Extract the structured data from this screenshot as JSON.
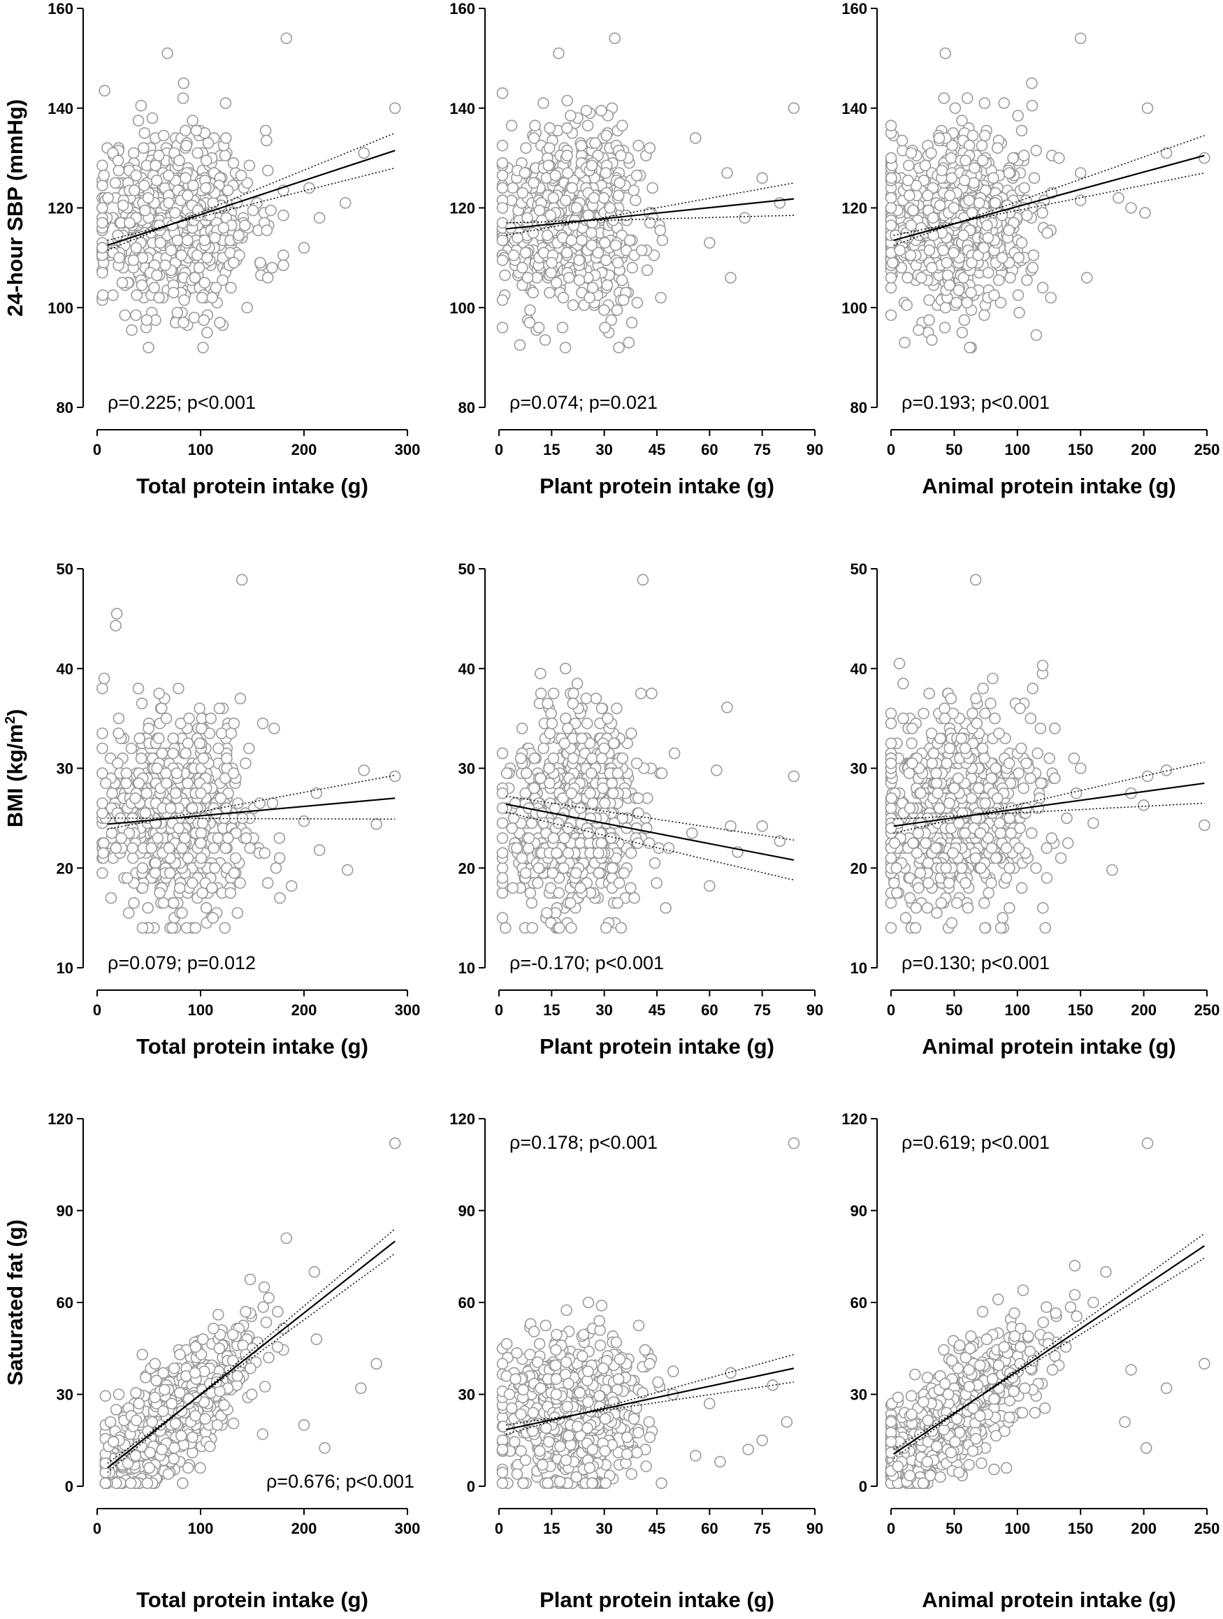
{
  "chart_data": [
    {
      "id": "sbp-total",
      "type": "scatter",
      "ylabel": "24-hour SBP (mmHg)",
      "xlabel": "Total protein intake (g)",
      "xlim": [
        0,
        300
      ],
      "ylim": [
        80,
        160
      ],
      "xticks": [
        0,
        100,
        200,
        300
      ],
      "yticks": [
        80,
        100,
        120,
        140,
        160
      ],
      "annotation": "ρ=0.225; p<0.001",
      "annotation_position": "bottom-left",
      "fit": {
        "x": [
          10,
          288
        ],
        "y": [
          112.5,
          131.5
        ]
      },
      "ci_lower": {
        "x": [
          10,
          288
        ],
        "y": [
          113.5,
          128
        ]
      },
      "ci_upper": {
        "x": [
          10,
          288
        ],
        "y": [
          111.5,
          135
        ]
      },
      "points": {
        "n": 650,
        "x_mean": 75,
        "x_sd": 38,
        "x_min": 5,
        "x_max": 180,
        "y_mean": 117.5,
        "y_sd": 9,
        "y_min": 92,
        "y_max": 145,
        "seed": 11
      },
      "outliers": [
        [
          288,
          140
        ],
        [
          183,
          154
        ],
        [
          68,
          151
        ],
        [
          258,
          131
        ],
        [
          200,
          112
        ],
        [
          165,
          106
        ],
        [
          145,
          100
        ],
        [
          240,
          121
        ],
        [
          205,
          124
        ],
        [
          215,
          118
        ]
      ]
    },
    {
      "id": "sbp-plant",
      "type": "scatter",
      "ylabel": "",
      "xlabel": "Plant protein intake (g)",
      "xlim": [
        0,
        90
      ],
      "ylim": [
        80,
        160
      ],
      "xticks": [
        0,
        15,
        30,
        45,
        60,
        75,
        90
      ],
      "yticks": [
        80,
        100,
        120,
        140,
        160
      ],
      "annotation": "ρ=0.074; p=0.021",
      "annotation_position": "bottom-left",
      "fit": {
        "x": [
          2,
          84
        ],
        "y": [
          115.8,
          121.8
        ]
      },
      "ci_lower": {
        "x": [
          2,
          84
        ],
        "y": [
          117,
          118.5
        ]
      },
      "ci_upper": {
        "x": [
          2,
          84
        ],
        "y": [
          114.5,
          125
        ]
      },
      "points": {
        "n": 650,
        "x_mean": 21,
        "x_sd": 10,
        "x_min": 1,
        "x_max": 50,
        "y_mean": 117.5,
        "y_sd": 9,
        "y_min": 92,
        "y_max": 145,
        "seed": 22
      },
      "outliers": [
        [
          84,
          140
        ],
        [
          33,
          154
        ],
        [
          17,
          151
        ],
        [
          66,
          106
        ],
        [
          75,
          126
        ],
        [
          80,
          121
        ],
        [
          56,
          134
        ],
        [
          65,
          127
        ],
        [
          70,
          118
        ],
        [
          60,
          113
        ]
      ]
    },
    {
      "id": "sbp-animal",
      "type": "scatter",
      "ylabel": "",
      "xlabel": "Animal protein intake (g)",
      "xlim": [
        0,
        250
      ],
      "ylim": [
        80,
        160
      ],
      "xticks": [
        0,
        50,
        100,
        150,
        200,
        250
      ],
      "yticks": [
        80,
        100,
        120,
        140,
        160
      ],
      "annotation": "ρ=0.193; p<0.001",
      "annotation_position": "bottom-left",
      "fit": {
        "x": [
          2,
          248
        ],
        "y": [
          113.5,
          130.5
        ]
      },
      "ci_lower": {
        "x": [
          2,
          248
        ],
        "y": [
          114.5,
          127
        ]
      },
      "ci_upper": {
        "x": [
          2,
          248
        ],
        "y": [
          112.5,
          134.5
        ]
      },
      "points": {
        "n": 650,
        "x_mean": 50,
        "x_sd": 33,
        "x_min": 0,
        "x_max": 150,
        "y_mean": 117.5,
        "y_sd": 9,
        "y_min": 92,
        "y_max": 145,
        "seed": 33
      },
      "outliers": [
        [
          248,
          130
        ],
        [
          150,
          154
        ],
        [
          43,
          151
        ],
        [
          203,
          140
        ],
        [
          155,
          106
        ],
        [
          201,
          119
        ],
        [
          180,
          122
        ],
        [
          120,
          104
        ],
        [
          218,
          131
        ],
        [
          190,
          120
        ]
      ]
    },
    {
      "id": "bmi-total",
      "type": "scatter",
      "ylabel": "BMI (kg/m²)",
      "ylabel_base": "BMI (kg/m",
      "ylabel_sup": "2",
      "ylabel_end": ")",
      "xlabel": "Total protein intake (g)",
      "xlim": [
        0,
        300
      ],
      "ylim": [
        10,
        50
      ],
      "xticks": [
        0,
        100,
        200,
        300
      ],
      "yticks": [
        10,
        20,
        30,
        40,
        50
      ],
      "annotation": "ρ=0.079; p=0.012",
      "annotation_position": "bottom-left",
      "fit": {
        "x": [
          10,
          288
        ],
        "y": [
          24.4,
          27
        ]
      },
      "ci_lower": {
        "x": [
          10,
          288
        ],
        "y": [
          25,
          24.9
        ]
      },
      "ci_upper": {
        "x": [
          10,
          288
        ],
        "y": [
          23.9,
          29.3
        ]
      },
      "points": {
        "n": 650,
        "x_mean": 75,
        "x_sd": 38,
        "x_min": 5,
        "x_max": 180,
        "y_mean": 25.5,
        "y_sd": 5.2,
        "y_min": 14,
        "y_max": 48,
        "seed": 44
      },
      "outliers": [
        [
          288,
          29.2
        ],
        [
          140,
          48.9
        ],
        [
          258,
          29.8
        ],
        [
          242,
          19.8
        ],
        [
          212,
          27.5
        ],
        [
          188,
          18.2
        ],
        [
          270,
          24.4
        ],
        [
          215,
          21.8
        ],
        [
          18,
          44.3
        ],
        [
          200,
          24.7
        ]
      ]
    },
    {
      "id": "bmi-plant",
      "type": "scatter",
      "ylabel": "",
      "xlabel": "Plant protein intake (g)",
      "xlim": [
        0,
        90
      ],
      "ylim": [
        10,
        50
      ],
      "xticks": [
        0,
        15,
        30,
        45,
        60,
        75,
        90
      ],
      "yticks": [
        10,
        20,
        30,
        40,
        50
      ],
      "annotation": "ρ=-0.170; p<0.001",
      "annotation_position": "bottom-left",
      "fit": {
        "x": [
          2,
          84
        ],
        "y": [
          26.4,
          20.8
        ]
      },
      "ci_lower": {
        "x": [
          2,
          84
        ],
        "y": [
          27.2,
          22.8
        ]
      },
      "ci_upper": {
        "x": [
          2,
          84
        ],
        "y": [
          25.6,
          18.8
        ]
      },
      "points": {
        "n": 650,
        "x_mean": 21,
        "x_sd": 10,
        "x_min": 1,
        "x_max": 50,
        "y_mean": 25.2,
        "y_sd": 5.2,
        "y_min": 14,
        "y_max": 48,
        "seed": 55
      },
      "outliers": [
        [
          84,
          29.2
        ],
        [
          41,
          48.9
        ],
        [
          65,
          36.1
        ],
        [
          62,
          29.8
        ],
        [
          80,
          22.7
        ],
        [
          75,
          24.2
        ],
        [
          68,
          21.6
        ],
        [
          55,
          23.5
        ],
        [
          60,
          18.2
        ],
        [
          66,
          24.2
        ]
      ]
    },
    {
      "id": "bmi-animal",
      "type": "scatter",
      "ylabel": "",
      "xlabel": "Animal protein intake (g)",
      "xlim": [
        0,
        250
      ],
      "ylim": [
        10,
        50
      ],
      "xticks": [
        0,
        50,
        100,
        150,
        200,
        250
      ],
      "yticks": [
        10,
        20,
        30,
        40,
        50
      ],
      "annotation": "ρ=0.130; p<0.001",
      "annotation_position": "bottom-left",
      "fit": {
        "x": [
          2,
          248
        ],
        "y": [
          24.2,
          28.5
        ]
      },
      "ci_lower": {
        "x": [
          2,
          248
        ],
        "y": [
          24.9,
          26.5
        ]
      },
      "ci_upper": {
        "x": [
          2,
          248
        ],
        "y": [
          23.5,
          30.6
        ]
      },
      "points": {
        "n": 650,
        "x_mean": 50,
        "x_sd": 33,
        "x_min": 0,
        "x_max": 150,
        "y_mean": 25.5,
        "y_sd": 5.2,
        "y_min": 14,
        "y_max": 48,
        "seed": 66
      },
      "outliers": [
        [
          248,
          24.3
        ],
        [
          67,
          48.9
        ],
        [
          218,
          29.8
        ],
        [
          203,
          29.2
        ],
        [
          175,
          19.8
        ],
        [
          190,
          27.5
        ],
        [
          160,
          24.5
        ],
        [
          120,
          40.3
        ],
        [
          140,
          22.5
        ],
        [
          200,
          26.3
        ]
      ]
    },
    {
      "id": "sfa-total",
      "type": "scatter",
      "ylabel": "Saturated fat (g)",
      "xlabel": "Total protein intake (g)",
      "xlim": [
        0,
        300
      ],
      "ylim": [
        0,
        120
      ],
      "xticks": [
        0,
        100,
        200,
        300
      ],
      "yticks": [
        0,
        30,
        60,
        90,
        120
      ],
      "annotation": "ρ=0.676; p<0.001",
      "annotation_position": "bottom-right",
      "fit": {
        "x": [
          10,
          288
        ],
        "y": [
          6,
          80
        ]
      },
      "ci_lower": {
        "x": [
          10,
          288
        ],
        "y": [
          7.5,
          76
        ]
      },
      "ci_upper": {
        "x": [
          10,
          288
        ],
        "y": [
          4.5,
          84
        ]
      },
      "points": {
        "n": 650,
        "x_mean": 75,
        "x_sd": 38,
        "x_min": 8,
        "x_max": 180,
        "y_slope": 0.26,
        "y_intercept": 3.5,
        "y_sd": 9,
        "y_min": 1,
        "y_max": 82,
        "seed": 77
      },
      "outliers": [
        [
          288,
          112
        ],
        [
          183,
          81
        ],
        [
          210,
          70
        ],
        [
          220,
          12.5
        ],
        [
          255,
          32
        ],
        [
          270,
          40
        ],
        [
          200,
          20
        ],
        [
          212,
          48
        ],
        [
          160,
          17
        ]
      ]
    },
    {
      "id": "sfa-plant",
      "type": "scatter",
      "ylabel": "",
      "xlabel": "Plant protein intake (g)",
      "xlim": [
        0,
        90
      ],
      "ylim": [
        0,
        120
      ],
      "xticks": [
        0,
        15,
        30,
        45,
        60,
        75,
        90
      ],
      "yticks": [
        0,
        30,
        60,
        90,
        120
      ],
      "annotation": "ρ=0.178; p<0.001",
      "annotation_position": "top-left",
      "fit": {
        "x": [
          2,
          84
        ],
        "y": [
          18.5,
          38.5
        ]
      },
      "ci_lower": {
        "x": [
          2,
          84
        ],
        "y": [
          20,
          34
        ]
      },
      "ci_upper": {
        "x": [
          2,
          84
        ],
        "y": [
          17,
          43
        ]
      },
      "points": {
        "n": 650,
        "x_mean": 21,
        "x_sd": 10,
        "x_min": 1,
        "x_max": 50,
        "y_mean": 24,
        "y_sd": 13,
        "y_min": 1,
        "y_max": 80,
        "seed": 88
      },
      "outliers": [
        [
          84,
          112
        ],
        [
          82,
          21
        ],
        [
          75,
          15
        ],
        [
          63,
          8
        ],
        [
          66,
          37
        ],
        [
          71,
          12
        ],
        [
          56,
          10
        ],
        [
          60,
          27
        ],
        [
          78,
          33
        ]
      ]
    },
    {
      "id": "sfa-animal",
      "type": "scatter",
      "ylabel": "",
      "xlabel": "Animal protein intake (g)",
      "xlim": [
        0,
        250
      ],
      "ylim": [
        0,
        120
      ],
      "xticks": [
        0,
        50,
        100,
        150,
        200,
        250
      ],
      "yticks": [
        0,
        30,
        60,
        90,
        120
      ],
      "annotation": "ρ=0.619; p<0.001",
      "annotation_position": "top-left",
      "fit": {
        "x": [
          2,
          248
        ],
        "y": [
          10.5,
          78.5
        ]
      },
      "ci_lower": {
        "x": [
          2,
          248
        ],
        "y": [
          12,
          74.5
        ]
      },
      "ci_upper": {
        "x": [
          2,
          248
        ],
        "y": [
          9,
          82.5
        ]
      },
      "points": {
        "n": 650,
        "x_mean": 50,
        "x_sd": 33,
        "x_min": 0,
        "x_max": 150,
        "y_slope": 0.27,
        "y_intercept": 10,
        "y_sd": 9,
        "y_min": 1,
        "y_max": 82,
        "seed": 99
      },
      "outliers": [
        [
          203,
          112
        ],
        [
          248,
          40
        ],
        [
          218,
          32
        ],
        [
          202,
          12.5
        ],
        [
          185,
          21
        ],
        [
          170,
          70
        ],
        [
          190,
          38
        ],
        [
          160,
          60
        ]
      ]
    }
  ]
}
